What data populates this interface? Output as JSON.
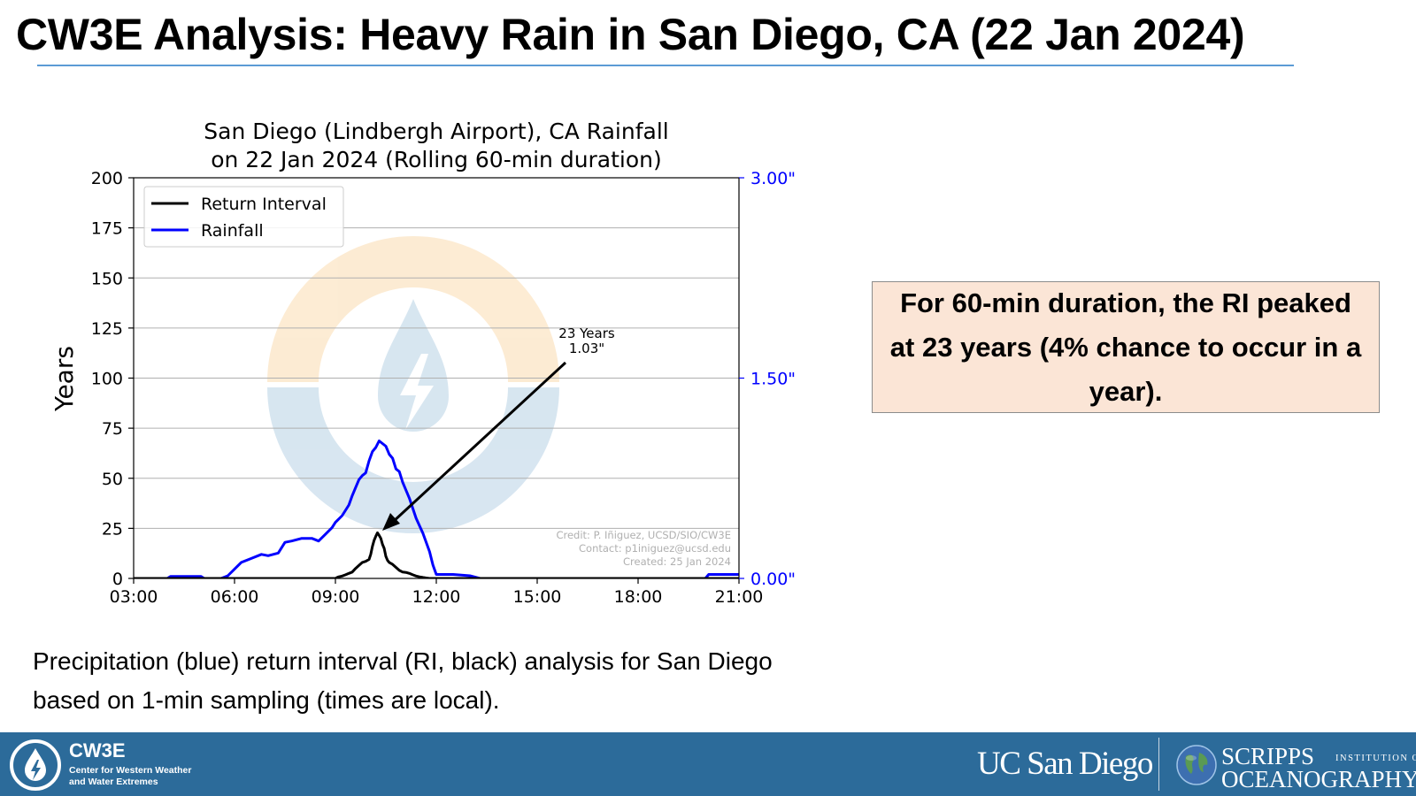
{
  "slide": {
    "title": "CW3E Analysis: Heavy Rain in San Diego, CA (22 Jan 2024)",
    "callout": "For 60-min duration, the RI peaked at 23 years (4% chance to occur in a year).",
    "caption": "Precipitation (blue) return interval (RI, black) analysis for San Diego based on 1-min sampling (times are local)."
  },
  "footer": {
    "cw3e_name": "CW3E",
    "cw3e_subtitle_1": "Center for Western Weather",
    "cw3e_subtitle_2": "and Water Extremes",
    "ucsd": "UC San Diego",
    "scripps_top": "SCRIPPS",
    "scripps_institution": "INSTITUTION OF",
    "scripps_bottom": "OCEANOGRAPHY",
    "bar_color": "#2c6b9a",
    "logo_icon": "water-drop-lightning-icon",
    "globe_icon": "globe-icon"
  },
  "chart_data": {
    "type": "line",
    "title_line1": "San Diego (Lindbergh Airport), CA Rainfall",
    "title_line2": "on 22 Jan 2024 (Rolling 60-min duration)",
    "ylabel_left": "Years",
    "xlim": [
      3,
      21
    ],
    "ylim_left": [
      0,
      200
    ],
    "ylim_right": [
      0,
      3
    ],
    "x_ticks": [
      3,
      6,
      9,
      12,
      15,
      18,
      21
    ],
    "x_tick_labels": [
      "03:00",
      "06:00",
      "09:00",
      "12:00",
      "15:00",
      "18:00",
      "21:00"
    ],
    "y_left_ticks": [
      0,
      25,
      50,
      75,
      100,
      125,
      150,
      175,
      200
    ],
    "y_left_tick_labels": [
      "0",
      "25",
      "50",
      "75",
      "100",
      "125",
      "150",
      "175",
      "200"
    ],
    "y_right_ticks": [
      0,
      1.5,
      3
    ],
    "y_right_tick_labels": [
      "0.00\"",
      "1.50\"",
      "3.00\""
    ],
    "grid": "horizontal",
    "legend_position": "top-left",
    "series": [
      {
        "name": "Return Interval",
        "axis": "left",
        "color": "#000000",
        "x": [
          3.0,
          9.0,
          9.05,
          9.1,
          9.2,
          9.3,
          9.4,
          9.5,
          9.6,
          9.7,
          9.8,
          9.9,
          10.0,
          10.05,
          10.1,
          10.15,
          10.2,
          10.25,
          10.3,
          10.35,
          10.4,
          10.45,
          10.5,
          10.55,
          10.6,
          10.7,
          10.8,
          10.9,
          11.0,
          11.1,
          11.2,
          11.3,
          11.4,
          11.5,
          11.6,
          11.7,
          11.8,
          12.0,
          21.0
        ],
        "y": [
          0,
          0,
          0.5,
          0.8,
          1.2,
          1.8,
          2.5,
          3.2,
          5,
          6.5,
          8,
          8.5,
          9.5,
          12,
          16,
          19,
          21,
          22.8,
          21.5,
          20,
          17,
          15,
          11,
          9,
          8,
          7,
          5.5,
          4,
          3.2,
          3,
          2.5,
          1.8,
          1.2,
          0.8,
          0.5,
          0.2,
          0,
          0,
          0
        ]
      },
      {
        "name": "Rainfall",
        "axis": "right",
        "color": "#0000ff",
        "x": [
          3.0,
          4.0,
          4.1,
          5.0,
          5.1,
          5.6,
          5.8,
          6.0,
          6.2,
          6.5,
          6.8,
          7.0,
          7.3,
          7.5,
          7.7,
          8.0,
          8.3,
          8.5,
          8.7,
          8.9,
          9.0,
          9.2,
          9.4,
          9.5,
          9.6,
          9.7,
          9.8,
          9.9,
          10.0,
          10.1,
          10.2,
          10.3,
          10.4,
          10.5,
          10.6,
          10.7,
          10.8,
          10.9,
          11.0,
          11.2,
          11.4,
          11.6,
          11.8,
          11.9,
          12.0,
          12.1,
          12.3,
          12.5,
          13.0,
          13.3,
          13.5,
          20.0,
          20.1,
          21.0
        ],
        "y": [
          0.0,
          0.0,
          0.015,
          0.015,
          0.0,
          0.0,
          0.02,
          0.07,
          0.12,
          0.15,
          0.18,
          0.17,
          0.19,
          0.27,
          0.28,
          0.3,
          0.3,
          0.28,
          0.33,
          0.38,
          0.42,
          0.47,
          0.55,
          0.62,
          0.68,
          0.74,
          0.77,
          0.79,
          0.88,
          0.95,
          0.98,
          1.03,
          1.01,
          0.99,
          0.93,
          0.9,
          0.82,
          0.8,
          0.72,
          0.6,
          0.45,
          0.34,
          0.2,
          0.1,
          0.03,
          0.03,
          0.03,
          0.03,
          0.02,
          0.0,
          0.0,
          0.0,
          0.03,
          0.03
        ]
      }
    ],
    "annotation": {
      "line1": "23 Years",
      "line2": "1.03\"",
      "target_x": 10.3,
      "target_y": 23
    },
    "credits": {
      "line1": "Credit: P. Iñiguez, UCSD/SIO/CW3E",
      "line2": "Contact: p1iniguez@ucsd.edu",
      "line3": "Created: 25 Jan 2024"
    }
  }
}
